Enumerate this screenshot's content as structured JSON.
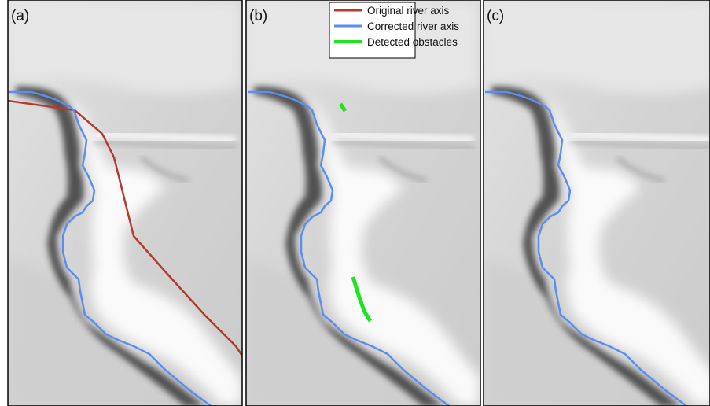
{
  "panels": [
    {
      "label": "(a)"
    },
    {
      "label": "(b)"
    },
    {
      "label": "(c)"
    }
  ],
  "legend": {
    "items": [
      {
        "label": "Original river axis",
        "color": "#b5392e"
      },
      {
        "label": "Corrected river axis",
        "color": "#5b8ef0"
      },
      {
        "label": "Detected obstacles",
        "color": "#1ee61e"
      }
    ]
  }
}
